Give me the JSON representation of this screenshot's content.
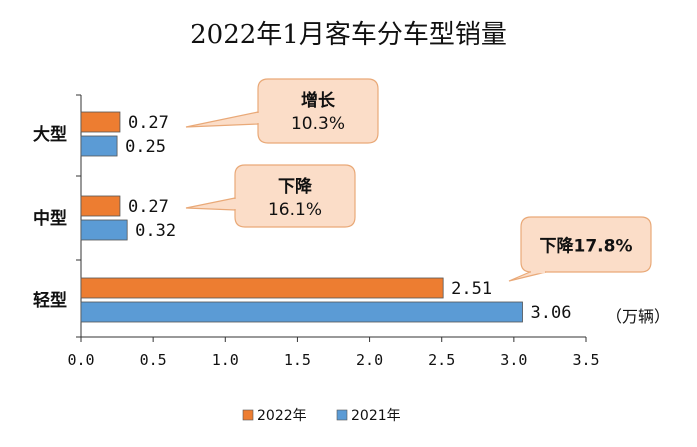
{
  "colors": {
    "series_2022": "#ED7D31",
    "series_2021": "#5B9BD5",
    "callout_fill": "#FBDDC8",
    "callout_stroke": "#E9A978",
    "axis": "#333333"
  },
  "chart_data": {
    "type": "bar",
    "orientation": "horizontal",
    "title": "2022年1月客车分车型销量",
    "categories": [
      "大型",
      "中型",
      "轻型"
    ],
    "series": [
      {
        "name": "2022年",
        "values": [
          0.27,
          0.27,
          2.51
        ],
        "labels": [
          "0.27",
          "0.27",
          "2.51"
        ]
      },
      {
        "name": "2021年",
        "values": [
          0.25,
          0.32,
          3.06
        ],
        "labels": [
          "0.25",
          "0.32",
          "3.06"
        ]
      }
    ],
    "xlim": [
      0,
      3.5
    ],
    "xticks": [
      "0.0",
      "0.5",
      "1.0",
      "1.5",
      "2.0",
      "2.5",
      "3.0",
      "3.5"
    ],
    "unit": "（万辆）",
    "grid": false,
    "legend_position": "bottom-center",
    "annotations": [
      {
        "category": "大型",
        "line1": "增长",
        "line2": "10.3%"
      },
      {
        "category": "中型",
        "line1": "下降",
        "line2": "16.1%"
      },
      {
        "category": "轻型",
        "line1": "下降17.8%",
        "line2": ""
      }
    ]
  }
}
